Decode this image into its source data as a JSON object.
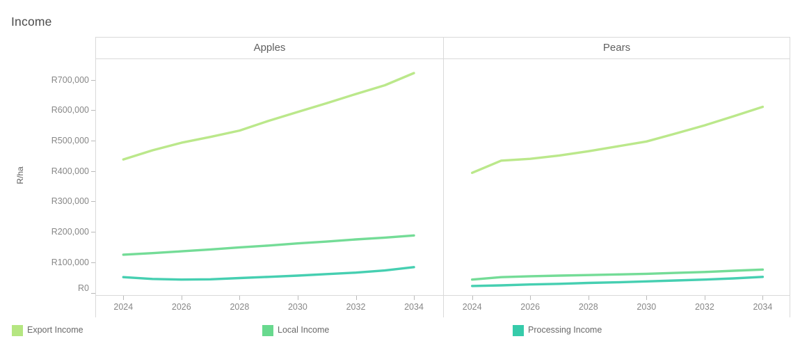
{
  "title": "Income",
  "y_axis": {
    "label": "R/ha",
    "ticks": [
      "R0",
      "R100,000",
      "R200,000",
      "R300,000",
      "R400,000",
      "R500,000",
      "R600,000",
      "R700,000"
    ]
  },
  "x_axis": {
    "ticks": [
      "2024",
      "2026",
      "2028",
      "2030",
      "2032",
      "2034"
    ]
  },
  "panels": [
    {
      "label": "Apples"
    },
    {
      "label": "Pears"
    }
  ],
  "legend": [
    {
      "label": "Export Income",
      "color": "#b5e681"
    },
    {
      "label": "Local Income",
      "color": "#68d98e"
    },
    {
      "label": "Processing Income",
      "color": "#36cbaa"
    }
  ],
  "chart_data": {
    "type": "line",
    "title": "Income",
    "ylabel": "R/ha",
    "unit": "R/ha (South African Rand per hectare)",
    "ylim": [
      0,
      770000
    ],
    "grid": false,
    "legend_position": "bottom",
    "x": [
      2024,
      2025,
      2026,
      2027,
      2028,
      2029,
      2030,
      2031,
      2032,
      2033,
      2034
    ],
    "panels": [
      {
        "title": "Apples",
        "series": [
          {
            "name": "Export Income",
            "color": "#b5e681",
            "values": [
              438000,
              468000,
              493000,
              512000,
              533000,
              565000,
              594000,
              623000,
              653000,
              682000,
              722000
            ]
          },
          {
            "name": "Local Income",
            "color": "#68d98e",
            "values": [
              125000,
              130000,
              136000,
              142000,
              149000,
              155000,
              162000,
              168000,
              175000,
              181000,
              188000
            ]
          },
          {
            "name": "Processing Income",
            "color": "#36cbaa",
            "values": [
              51000,
              45000,
              43000,
              44000,
              48000,
              52000,
              56000,
              61000,
              66000,
              73000,
              84000
            ]
          }
        ]
      },
      {
        "title": "Pears",
        "series": [
          {
            "name": "Export Income",
            "color": "#b5e681",
            "values": [
              394000,
              434000,
              440000,
              451000,
              465000,
              481000,
              497000,
              523000,
              550000,
              580000,
              611000
            ]
          },
          {
            "name": "Local Income",
            "color": "#68d98e",
            "values": [
              43000,
              51000,
              54000,
              56000,
              58000,
              60000,
              62000,
              65000,
              68000,
              72000,
              76000
            ]
          },
          {
            "name": "Processing Income",
            "color": "#36cbaa",
            "values": [
              22000,
              24000,
              27000,
              29000,
              32000,
              34000,
              37000,
              40000,
              43000,
              47000,
              52000
            ]
          }
        ]
      }
    ]
  }
}
